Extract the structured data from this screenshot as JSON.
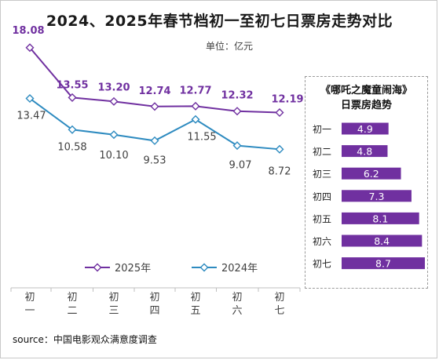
{
  "title": "2024、2025年春节档初一至初七日票房走势对比",
  "unit_label": "单位：亿元",
  "source": "source：中国电影观众满意度调查",
  "colors": {
    "series_2025": "#7030a0",
    "series_2024": "#2e8bc0",
    "bar": "#7030a0"
  },
  "chart_data": [
    {
      "type": "line",
      "categories": [
        "初一",
        "初二",
        "初三",
        "初四",
        "初五",
        "初六",
        "初七"
      ],
      "series": [
        {
          "name": "2025年",
          "values": [
            18.08,
            13.55,
            13.2,
            12.74,
            12.77,
            12.32,
            12.19
          ],
          "labels": [
            "18.08",
            "13.55",
            "13.20",
            "12.74",
            "12.77",
            "12.32",
            "12.19"
          ]
        },
        {
          "name": "2024年",
          "values": [
            13.47,
            10.58,
            10.1,
            9.53,
            11.55,
            9.07,
            8.72
          ],
          "labels": [
            "13.47",
            "10.58",
            "10.10",
            "9.53",
            "11.55",
            "9.07",
            "8.72"
          ]
        }
      ],
      "ylim": [
        0,
        20
      ],
      "legend": "bottom",
      "grid": false
    },
    {
      "type": "bar",
      "orientation": "horizontal",
      "title_lines": [
        "《哪吒之魔童闹海》",
        "日票房趋势"
      ],
      "categories": [
        "初一",
        "初二",
        "初三",
        "初四",
        "初五",
        "初六",
        "初七"
      ],
      "values": [
        4.9,
        4.8,
        6.2,
        7.3,
        8.1,
        8.4,
        8.7
      ],
      "labels": [
        "4.9",
        "4.8",
        "6.2",
        "7.3",
        "8.1",
        "8.4",
        "8.7"
      ],
      "xlim": [
        0,
        8.7
      ]
    }
  ]
}
